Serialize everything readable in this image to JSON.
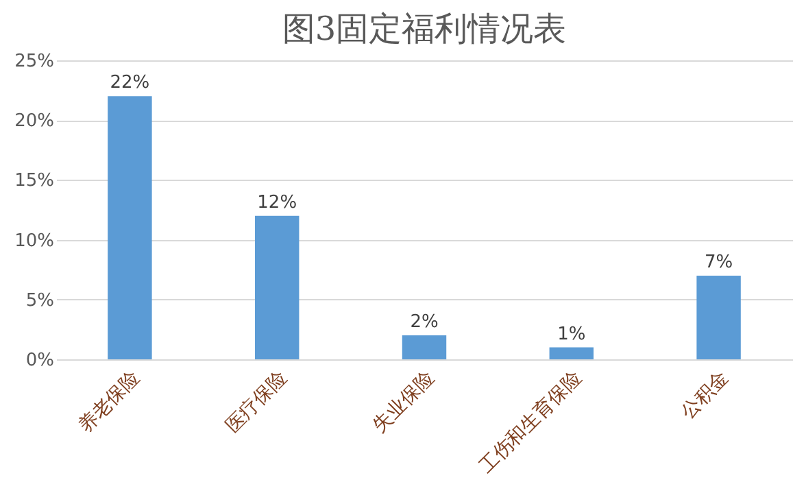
{
  "chart_data": {
    "type": "bar",
    "title": "图3固定福利情况表",
    "categories": [
      "养老保险",
      "医疗保险",
      "失业保险",
      "工伤和生育保险",
      "公积金"
    ],
    "values": [
      22,
      12,
      2,
      1,
      7
    ],
    "value_labels": [
      "22%",
      "12%",
      "2%",
      "1%",
      "7%"
    ],
    "color": "#5b9bd5",
    "ylim": [
      0,
      25
    ],
    "yticks": [
      {
        "value": 0,
        "label": "0%"
      },
      {
        "value": 5,
        "label": "5%"
      },
      {
        "value": 10,
        "label": "10%"
      },
      {
        "value": 15,
        "label": "15%"
      },
      {
        "value": 20,
        "label": "20%"
      },
      {
        "value": 25,
        "label": "25%"
      }
    ],
    "grid": "y"
  }
}
